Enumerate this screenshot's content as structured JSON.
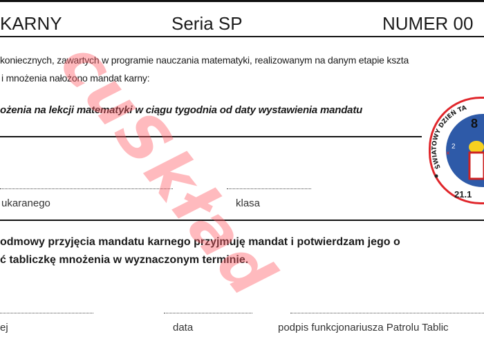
{
  "header": {
    "title_fragment": "KARNY",
    "series": "Seria SP",
    "number_fragment": "NUMER 00"
  },
  "intro": {
    "line1": "koniecznych, zawartych w programie nauczania matematyki, realizowanym na danym etapie kszta",
    "line2": "i mnożenia nałożono mandat karny:"
  },
  "penalty": "ożenia na lekcji matematyki w ciągu tygodnia od daty wystawienia mandatu",
  "fields": {
    "name_label": "ukaranego",
    "class_label": "klasa"
  },
  "declaration": {
    "line1": "odmowy przyjęcia mandatu karnego przyjmuję mandat i potwierdzam jego o",
    "line2": "ć tabliczkę mnożenia w wyznaczonym terminie."
  },
  "signatures": {
    "left_label": "ej",
    "date_label": "data",
    "officer_label": "podpis funkcjonariusza Patrolu Tablic"
  },
  "badge": {
    "arc_text": "ŚWIATOWY DZIEŃ TA",
    "number": "8",
    "date_fragment": "21.1",
    "colors": {
      "ring": "#e0262b",
      "fill": "#2e5aa8"
    }
  },
  "watermark": "cuSkład"
}
